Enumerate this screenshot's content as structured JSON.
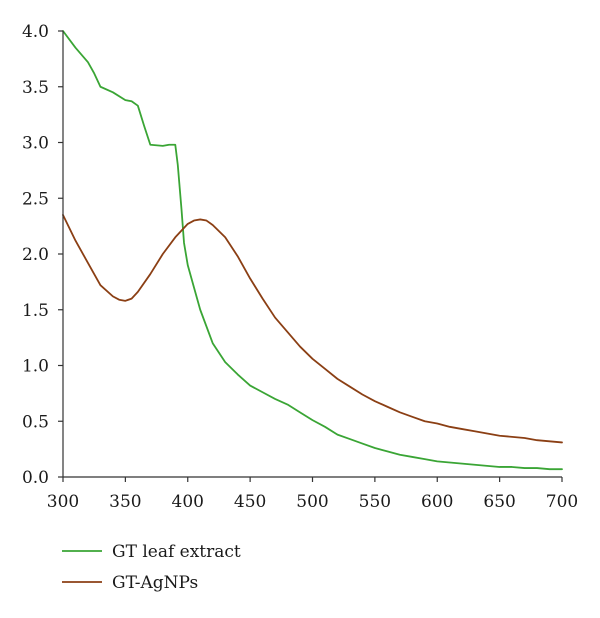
{
  "chart_data": {
    "type": "line",
    "title": "",
    "xlabel": "",
    "ylabel": "",
    "xlim": [
      300,
      700
    ],
    "ylim": [
      0,
      4
    ],
    "grid": false,
    "legend_position": "bottom-left",
    "x_ticks": [
      "300",
      "350",
      "400",
      "450",
      "500",
      "550",
      "600",
      "650",
      "700"
    ],
    "y_ticks": [
      "0.0",
      "0.5",
      "1.0",
      "1.5",
      "2.0",
      "2.5",
      "3.0",
      "3.5",
      "4.0"
    ],
    "series": [
      {
        "name": "GT leaf extract",
        "color": "#3aa535",
        "x": [
          300,
          310,
          320,
          325,
          330,
          340,
          350,
          355,
          360,
          365,
          370,
          380,
          385,
          390,
          392,
          395,
          397,
          400,
          405,
          410,
          420,
          430,
          440,
          450,
          460,
          470,
          480,
          490,
          500,
          510,
          520,
          530,
          540,
          550,
          560,
          570,
          580,
          590,
          600,
          610,
          620,
          630,
          640,
          650,
          660,
          670,
          680,
          690,
          700
        ],
        "values": [
          4.0,
          3.85,
          3.72,
          3.62,
          3.5,
          3.45,
          3.38,
          3.37,
          3.33,
          3.15,
          2.98,
          2.97,
          2.98,
          2.98,
          2.8,
          2.4,
          2.1,
          1.9,
          1.7,
          1.5,
          1.2,
          1.03,
          0.92,
          0.82,
          0.76,
          0.7,
          0.65,
          0.58,
          0.51,
          0.45,
          0.38,
          0.34,
          0.3,
          0.26,
          0.23,
          0.2,
          0.18,
          0.16,
          0.14,
          0.13,
          0.12,
          0.11,
          0.1,
          0.09,
          0.09,
          0.08,
          0.08,
          0.07,
          0.07
        ]
      },
      {
        "name": "GT-AgNPs",
        "color": "#8b3f14",
        "x": [
          300,
          310,
          320,
          330,
          340,
          345,
          350,
          355,
          360,
          370,
          380,
          390,
          400,
          405,
          410,
          415,
          420,
          430,
          440,
          450,
          460,
          470,
          480,
          490,
          500,
          510,
          520,
          530,
          540,
          550,
          560,
          570,
          580,
          590,
          600,
          610,
          620,
          630,
          640,
          650,
          660,
          670,
          680,
          690,
          700
        ],
        "values": [
          2.35,
          2.12,
          1.92,
          1.72,
          1.62,
          1.59,
          1.58,
          1.6,
          1.66,
          1.82,
          2.0,
          2.15,
          2.27,
          2.3,
          2.31,
          2.3,
          2.26,
          2.15,
          1.98,
          1.78,
          1.6,
          1.43,
          1.3,
          1.17,
          1.06,
          0.97,
          0.88,
          0.81,
          0.74,
          0.68,
          0.63,
          0.58,
          0.54,
          0.5,
          0.48,
          0.45,
          0.43,
          0.41,
          0.39,
          0.37,
          0.36,
          0.35,
          0.33,
          0.32,
          0.31
        ]
      }
    ]
  }
}
